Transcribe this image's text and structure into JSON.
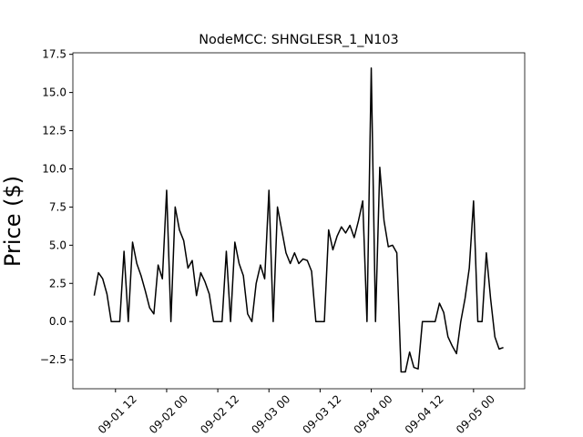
{
  "chart_data": {
    "type": "line",
    "title": "NodeMCC: SHNGLESR_1_N103",
    "y_label": "Price ($)",
    "x": [
      "09-01 07",
      "09-01 08",
      "09-01 09",
      "09-01 10",
      "09-01 11",
      "09-01 12",
      "09-01 13",
      "09-01 14",
      "09-01 15",
      "09-01 16",
      "09-01 17",
      "09-01 18",
      "09-01 19",
      "09-01 20",
      "09-01 21",
      "09-01 22",
      "09-01 23",
      "09-02 00",
      "09-02 01",
      "09-02 02",
      "09-02 03",
      "09-02 04",
      "09-02 05",
      "09-02 06",
      "09-02 07",
      "09-02 08",
      "09-02 09",
      "09-02 10",
      "09-02 11",
      "09-02 12",
      "09-02 13",
      "09-02 14",
      "09-02 15",
      "09-02 16",
      "09-02 17",
      "09-02 18",
      "09-02 19",
      "09-02 20",
      "09-02 21",
      "09-02 22",
      "09-02 23",
      "09-03 00",
      "09-03 01",
      "09-03 02",
      "09-03 03",
      "09-03 04",
      "09-03 05",
      "09-03 06",
      "09-03 07",
      "09-03 08",
      "09-03 09",
      "09-03 10",
      "09-03 11",
      "09-03 12",
      "09-03 13",
      "09-03 14",
      "09-03 15",
      "09-03 16",
      "09-03 17",
      "09-03 18",
      "09-03 19",
      "09-03 20",
      "09-03 21",
      "09-03 22",
      "09-03 23",
      "09-04 00",
      "09-04 01",
      "09-04 02",
      "09-04 03",
      "09-04 04",
      "09-04 05",
      "09-04 06",
      "09-04 07",
      "09-04 08",
      "09-04 09",
      "09-04 10",
      "09-04 11",
      "09-04 12",
      "09-04 13",
      "09-04 14",
      "09-04 15",
      "09-04 16",
      "09-04 17",
      "09-04 18",
      "09-04 19",
      "09-04 20",
      "09-04 21",
      "09-04 22",
      "09-04 23",
      "09-05 00",
      "09-05 01",
      "09-05 02",
      "09-05 03",
      "09-05 04",
      "09-05 05",
      "09-05 06",
      "09-05 07"
    ],
    "series": [
      {
        "name": "Price",
        "color": "#000000",
        "values": [
          1.7,
          3.2,
          2.8,
          1.8,
          0,
          0,
          0,
          4.6,
          0,
          5.2,
          3.8,
          3.0,
          2.0,
          0.9,
          0.5,
          3.7,
          2.8,
          8.6,
          0,
          7.5,
          6.0,
          5.3,
          3.5,
          4.0,
          1.7,
          3.2,
          2.6,
          1.8,
          0,
          0,
          0,
          4.6,
          0,
          5.2,
          3.8,
          3.0,
          0.5,
          0,
          2.5,
          3.7,
          2.8,
          8.6,
          0,
          7.5,
          6.0,
          4.5,
          3.8,
          4.5,
          3.8,
          4.1,
          4.0,
          3.3,
          0,
          0,
          0,
          6.0,
          4.7,
          5.6,
          6.2,
          5.8,
          6.3,
          5.5,
          6.6,
          7.9,
          0,
          16.6,
          0,
          10.1,
          6.6,
          4.9,
          5.0,
          4.5,
          -3.3,
          -3.3,
          -2.0,
          -3.0,
          -3.1,
          0,
          0,
          0,
          0,
          1.2,
          0.6,
          -1.0,
          -1.6,
          -2.1,
          0,
          1.5,
          3.5,
          7.9,
          0,
          0,
          4.5,
          1.5,
          -1.0,
          -1.8,
          -1.7
        ]
      }
    ],
    "xlim": [
      "09-01 02",
      "09-05 12"
    ],
    "xticks": [
      "09-01 12",
      "09-02 00",
      "09-02 12",
      "09-03 00",
      "09-03 12",
      "09-04 00",
      "09-04 12",
      "09-05 00"
    ],
    "ylim": [
      -4.4,
      17.6
    ],
    "yticks": [
      {
        "value": -2.5,
        "label": "−2.5"
      },
      {
        "value": 0,
        "label": "0.0"
      },
      2.5,
      {
        "value": 5,
        "label": "5.0"
      },
      7.5,
      {
        "value": 10,
        "label": "10.0"
      },
      12.5,
      {
        "value": 15,
        "label": "15.0"
      },
      17.5
    ]
  }
}
